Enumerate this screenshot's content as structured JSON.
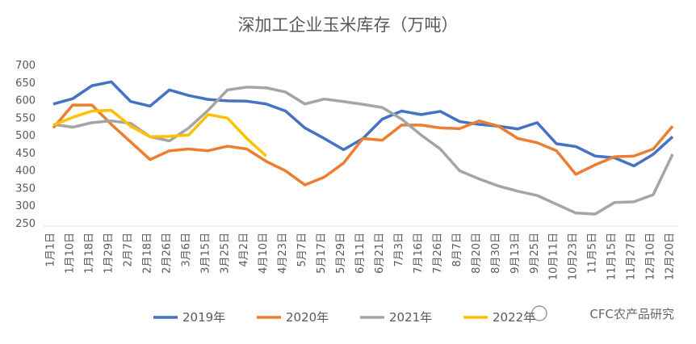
{
  "chart_data": {
    "type": "line",
    "title": "深加工企业玉米库存（万吨）",
    "categories": [
      "1月1日",
      "1月10日",
      "1月18日",
      "1月29日",
      "2月7日",
      "2月18日",
      "2月26日",
      "3月6日",
      "3月15日",
      "3月25日",
      "4月2日",
      "4月10日",
      "4月23日",
      "5月7日",
      "5月17日",
      "5月29日",
      "6月11日",
      "6月21日",
      "7月3日",
      "7月16日",
      "7月26日",
      "8月7日",
      "8月20日",
      "8月30日",
      "9月13日",
      "9月25日",
      "10月11日",
      "10月23日",
      "11月5日",
      "11月15日",
      "11月27日",
      "12月10日",
      "12月20日"
    ],
    "series": [
      {
        "name": "2019年",
        "color": "#4472c4",
        "values": [
          588,
          603,
          640,
          651,
          595,
          582,
          628,
          612,
          601,
          597,
          596,
          588,
          568,
          520,
          490,
          458,
          490,
          545,
          568,
          558,
          567,
          538,
          530,
          525,
          517,
          535,
          475,
          467,
          440,
          435,
          412,
          445,
          495
        ]
      },
      {
        "name": "2020年",
        "color": "#ed7d31",
        "values": [
          520,
          585,
          585,
          530,
          480,
          430,
          455,
          460,
          455,
          468,
          460,
          425,
          398,
          358,
          380,
          420,
          490,
          485,
          528,
          528,
          520,
          518,
          540,
          525,
          490,
          478,
          455,
          388,
          415,
          438,
          440,
          460,
          525
        ]
      },
      {
        "name": "2021年",
        "color": "#a5a5a5",
        "values": [
          530,
          522,
          535,
          540,
          533,
          495,
          483,
          520,
          570,
          628,
          636,
          634,
          622,
          588,
          602,
          595,
          587,
          578,
          545,
          500,
          460,
          398,
          375,
          355,
          340,
          328,
          303,
          278,
          275,
          308,
          310,
          330,
          445
        ]
      },
      {
        "name": "2022年",
        "color": "#ffc000",
        "values": [
          528,
          550,
          568,
          570,
          525,
          495,
          496,
          500,
          558,
          548,
          490,
          440,
          null,
          null,
          null,
          null,
          null,
          null,
          null,
          null,
          null,
          null,
          null,
          null,
          null,
          null,
          null,
          null,
          null,
          null,
          null,
          null,
          null
        ]
      }
    ],
    "ylim": [
      250,
      700
    ],
    "yticks": [
      250,
      300,
      350,
      400,
      450,
      500,
      550,
      600,
      650,
      700
    ],
    "grid": false,
    "legend": "bottom",
    "watermark": "CFC农产品研究"
  }
}
